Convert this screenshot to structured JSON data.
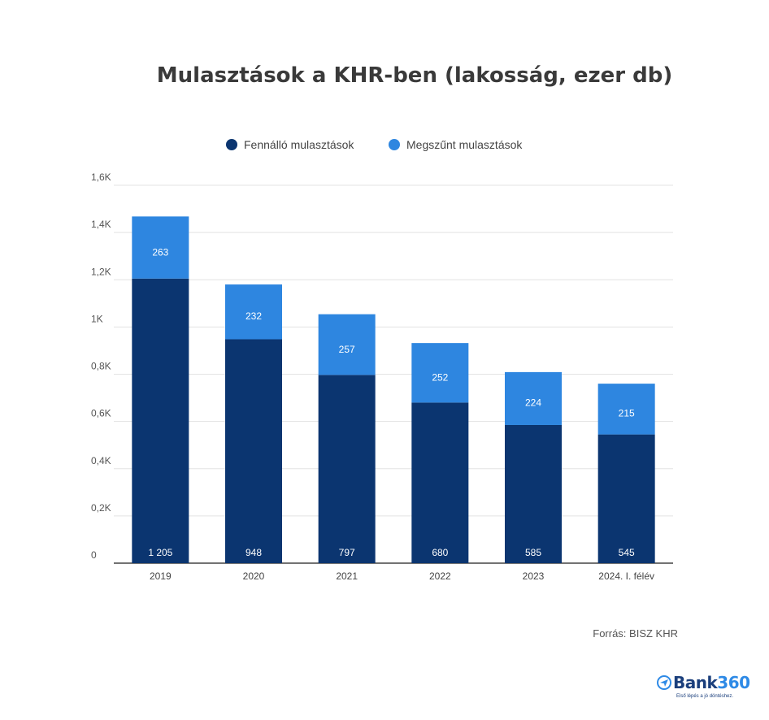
{
  "chart_data": {
    "type": "bar",
    "stacked": true,
    "title": "Mulasztások a KHR-ben (lakosság, ezer db)",
    "categories": [
      "2019",
      "2020",
      "2021",
      "2022",
      "2023",
      "2024. I. félév"
    ],
    "series": [
      {
        "name": "Fennálló mulasztások",
        "color": "#0b3570",
        "values": [
          1205,
          948,
          797,
          680,
          585,
          545
        ],
        "labels": [
          "1 205",
          "948",
          "797",
          "680",
          "585",
          "545"
        ]
      },
      {
        "name": "Megszűnt mulasztások",
        "color": "#2e86e0",
        "values": [
          263,
          232,
          257,
          252,
          224,
          215
        ],
        "labels": [
          "263",
          "232",
          "257",
          "252",
          "224",
          "215"
        ]
      }
    ],
    "ylim": [
      0,
      1600
    ],
    "yticks": [
      0,
      200,
      400,
      600,
      800,
      1000,
      1200,
      1400,
      1600
    ],
    "ytick_labels": [
      "0",
      "0,2K",
      "0,4K",
      "0,6K",
      "0,8K",
      "1K",
      "1,2K",
      "1,4K",
      "1,6K"
    ],
    "grid": true,
    "legend_position": "top-center",
    "source": "Forrás: BISZ KHR"
  },
  "logo": {
    "name": "Bank",
    "accent": "360",
    "tagline": "Első lépés a jó döntéshez."
  }
}
